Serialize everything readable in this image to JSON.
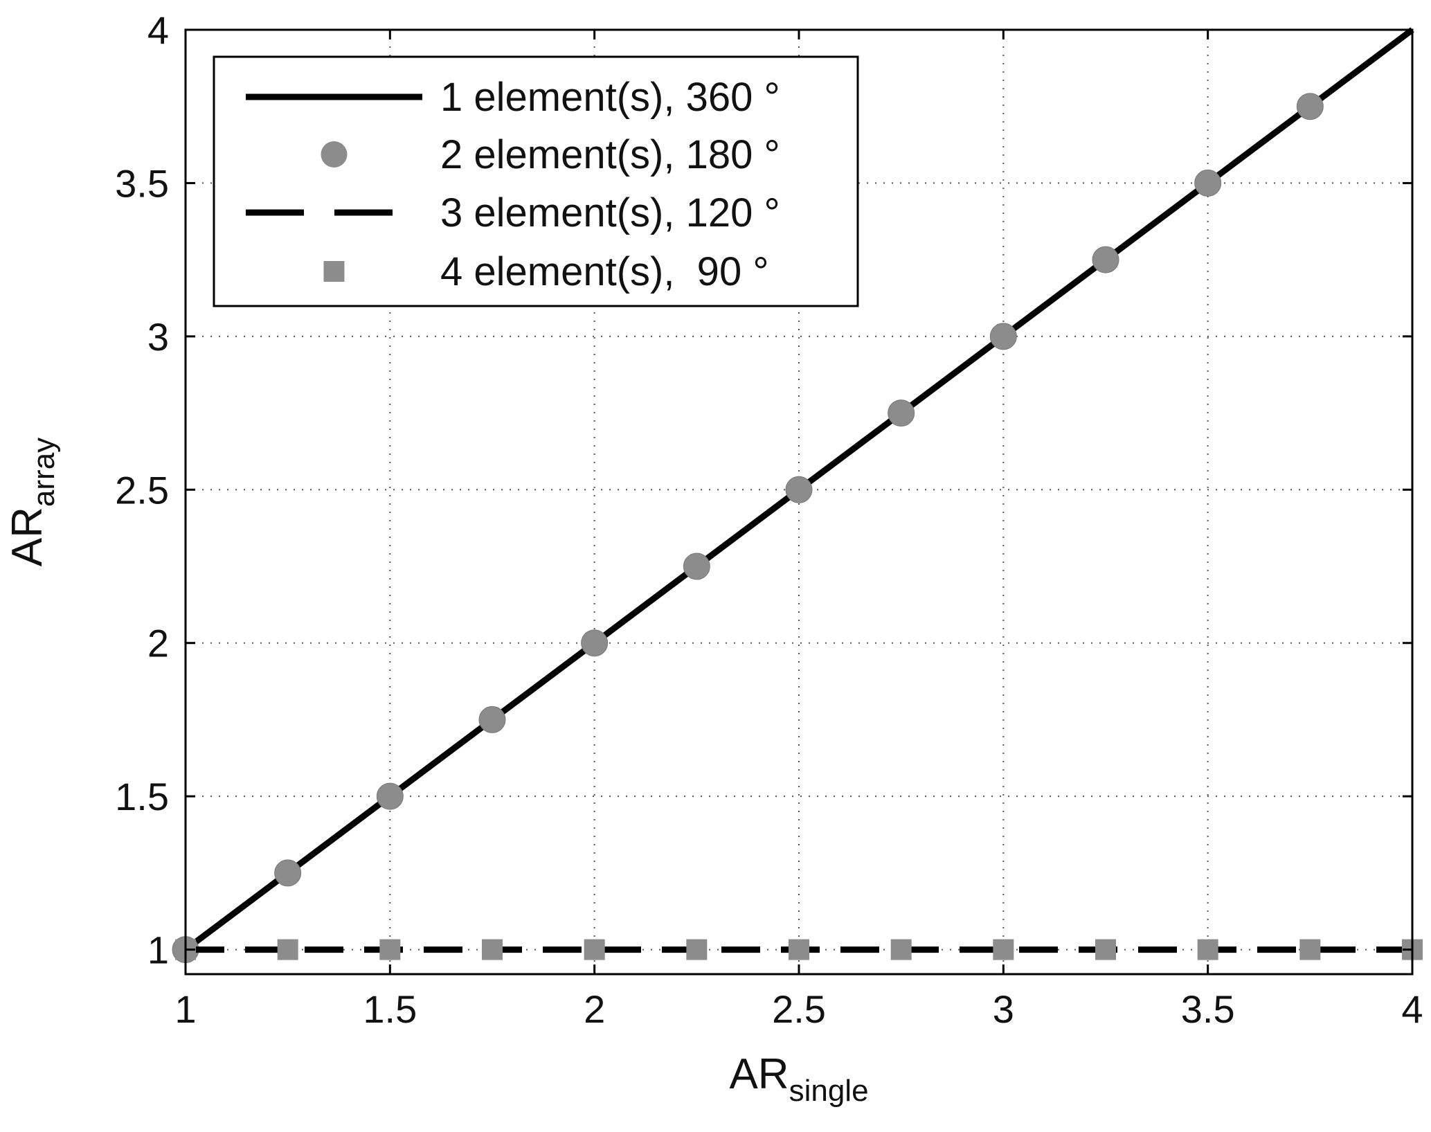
{
  "chart_data": {
    "type": "line",
    "xlabel": {
      "main": "AR",
      "sub": "single"
    },
    "ylabel": {
      "main": "AR",
      "sub": "array"
    },
    "xlim": [
      1,
      4
    ],
    "ylim": [
      0.92,
      4
    ],
    "grid": true,
    "legend_position": "top-left",
    "xticks": [
      {
        "value": 1,
        "label": "1"
      },
      {
        "value": 1.5,
        "label": "1.5"
      },
      {
        "value": 2,
        "label": "2"
      },
      {
        "value": 2.5,
        "label": "2.5"
      },
      {
        "value": 3,
        "label": "3"
      },
      {
        "value": 3.5,
        "label": "3.5"
      },
      {
        "value": 4,
        "label": "4"
      }
    ],
    "yticks": [
      {
        "value": 1,
        "label": "1"
      },
      {
        "value": 1.5,
        "label": "1.5"
      },
      {
        "value": 2,
        "label": "2"
      },
      {
        "value": 2.5,
        "label": "2.5"
      },
      {
        "value": 3,
        "label": "3"
      },
      {
        "value": 3.5,
        "label": "3.5"
      },
      {
        "value": 4,
        "label": "4"
      }
    ],
    "series": [
      {
        "name": "1 element(s), 360 °",
        "style": "solid-line",
        "color": "#000000",
        "x": [
          1,
          4
        ],
        "y": [
          1,
          4
        ]
      },
      {
        "name": "2 element(s), 180 °",
        "style": "circle-markers",
        "color": "#8c8c8c",
        "x": [
          1,
          1.25,
          1.5,
          1.75,
          2,
          2.25,
          2.5,
          2.75,
          3,
          3.25,
          3.5,
          3.75
        ],
        "y": [
          1,
          1.25,
          1.5,
          1.75,
          2,
          2.25,
          2.5,
          2.75,
          3,
          3.25,
          3.5,
          3.75
        ]
      },
      {
        "name": "3 element(s), 120 °",
        "style": "dashed-line",
        "color": "#000000",
        "x": [
          1,
          4
        ],
        "y": [
          1,
          1
        ]
      },
      {
        "name": "4 element(s),  90 °",
        "style": "square-markers",
        "color": "#8c8c8c",
        "x": [
          1,
          1.25,
          1.5,
          1.75,
          2,
          2.25,
          2.5,
          2.75,
          3,
          3.25,
          3.5,
          3.75,
          4
        ],
        "y": [
          1,
          1,
          1,
          1,
          1,
          1,
          1,
          1,
          1,
          1,
          1,
          1,
          1
        ]
      }
    ]
  }
}
